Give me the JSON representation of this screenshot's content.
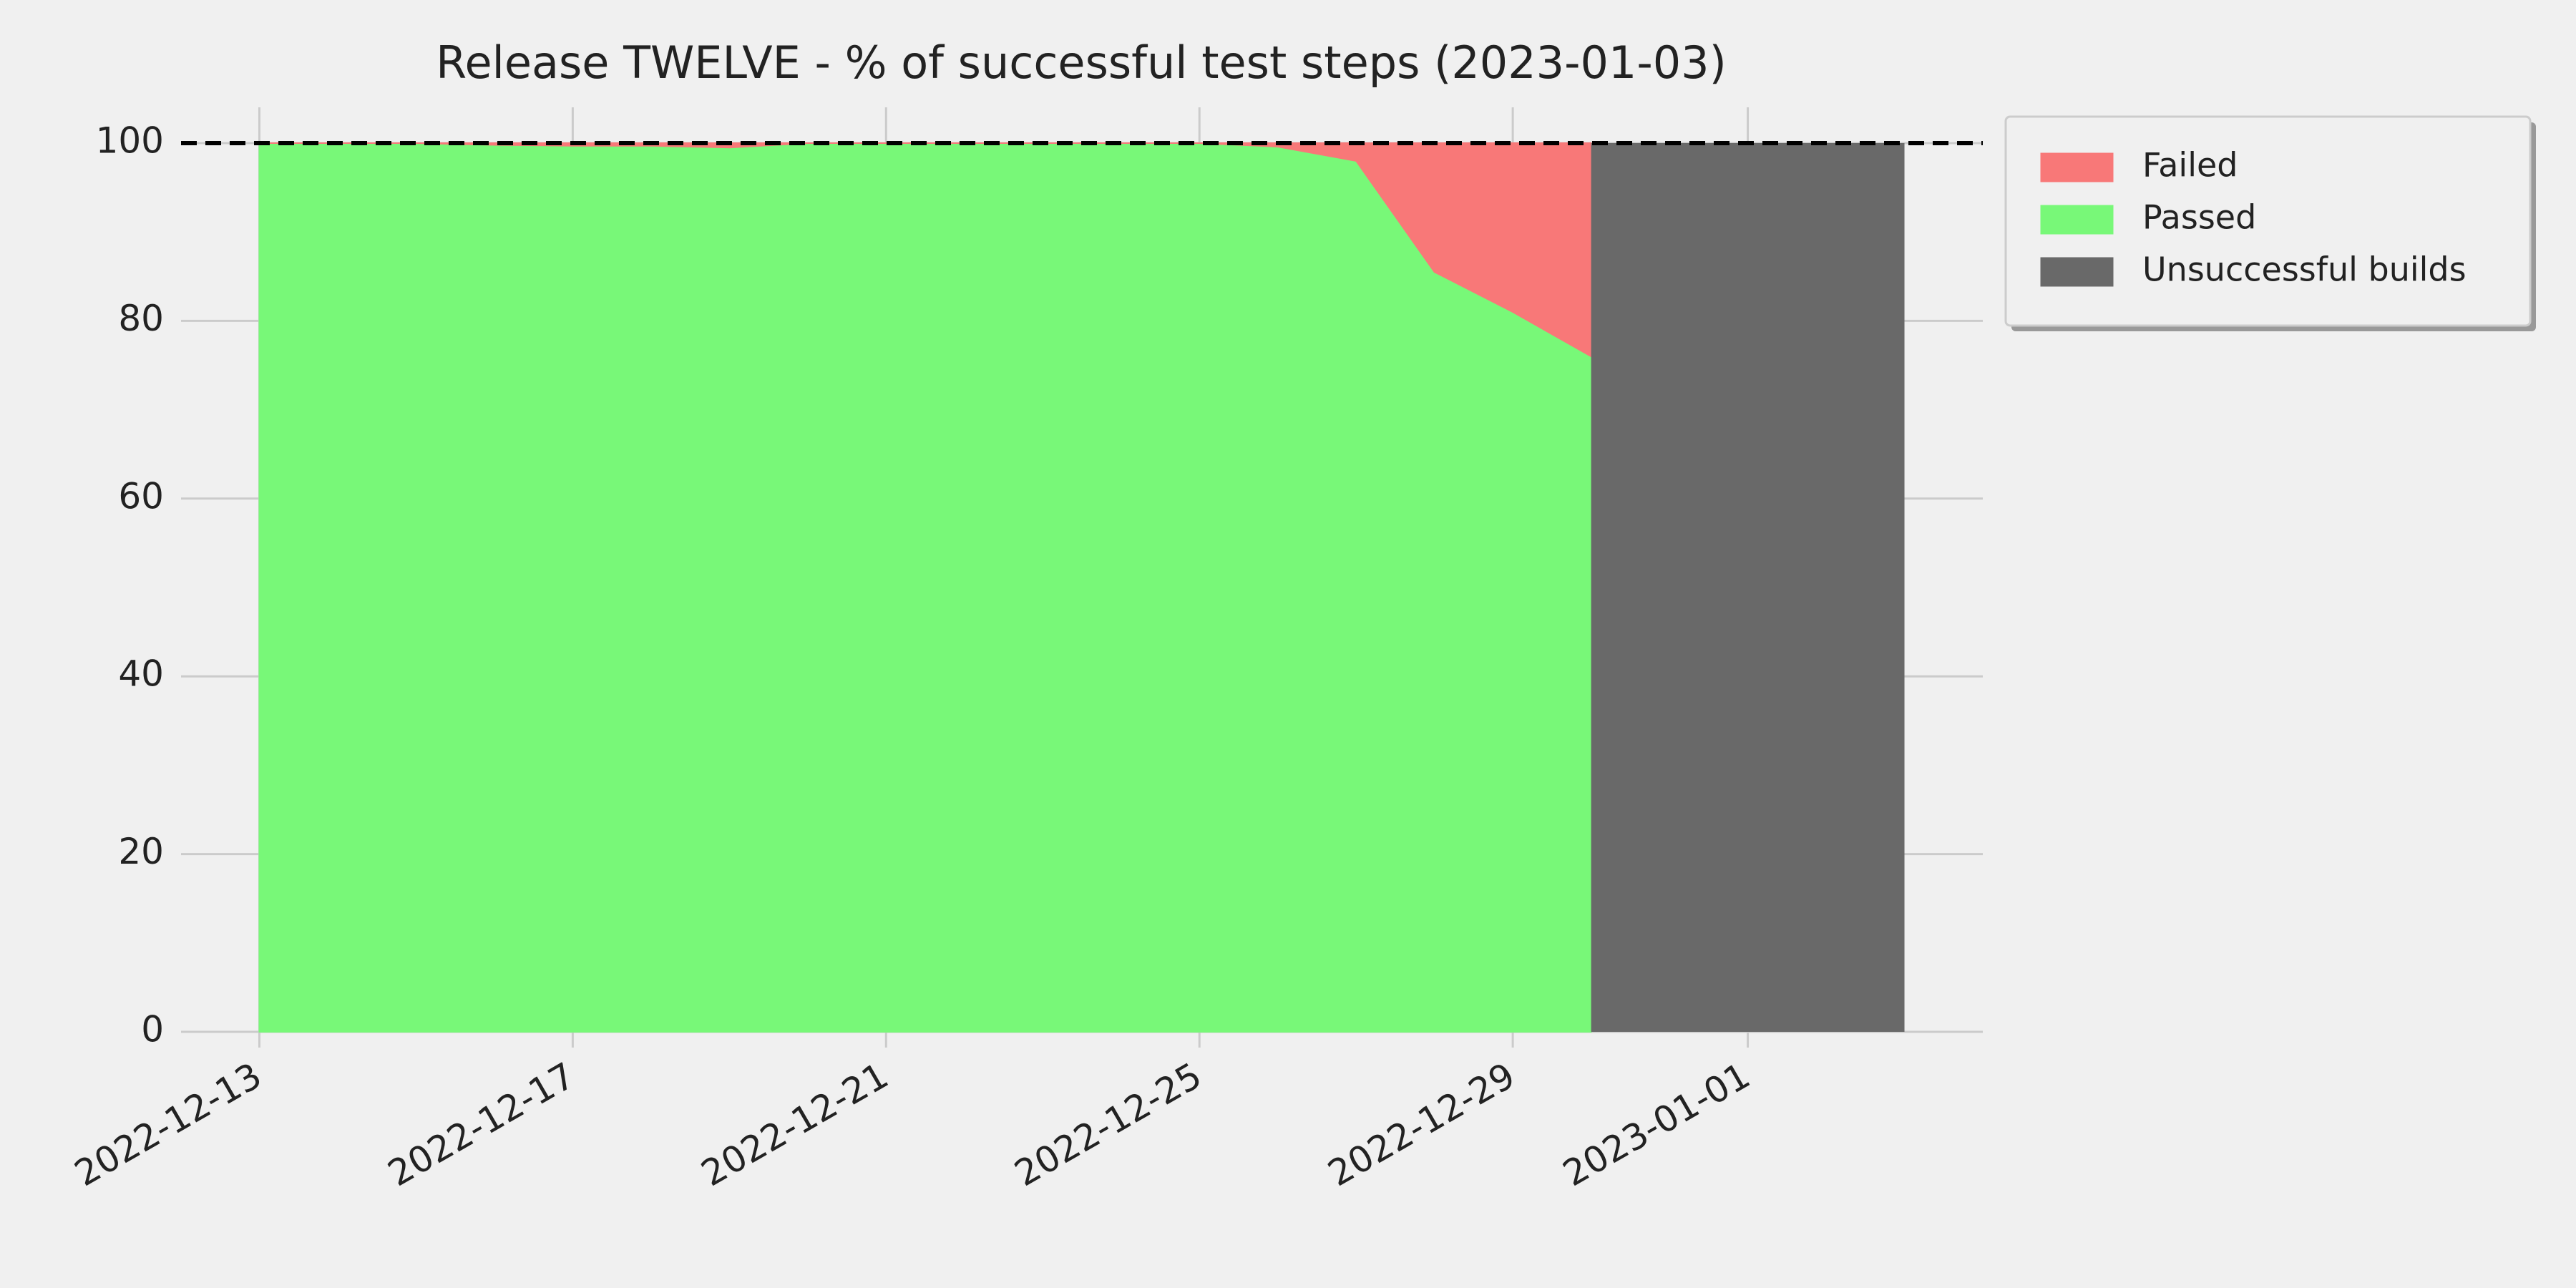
{
  "chart_data": {
    "type": "stacked-area",
    "title": "Release TWELVE - % of successful test steps (2023-01-03)",
    "x": [
      "2022-12-13",
      "2022-12-14",
      "2022-12-15",
      "2022-12-16",
      "2022-12-17",
      "2022-12-18",
      "2022-12-19",
      "2022-12-20",
      "2022-12-21",
      "2022-12-22",
      "2022-12-23",
      "2022-12-24",
      "2022-12-25",
      "2022-12-26",
      "2022-12-27",
      "2022-12-28",
      "2022-12-29",
      "2022-12-30"
    ],
    "series": [
      {
        "name": "Passed",
        "color": "#78f878",
        "values": [
          100,
          100,
          100,
          99.8,
          99.7,
          99.7,
          99.5,
          100,
          100,
          100,
          100,
          100,
          100,
          99.6,
          98,
          85.5,
          81,
          76
        ]
      },
      {
        "name": "Failed",
        "color": "#f87878",
        "values": [
          0,
          0,
          0,
          0.2,
          0.3,
          0.3,
          0.5,
          0,
          0,
          0,
          0,
          0,
          0,
          0.4,
          2,
          14.5,
          19,
          24
        ]
      }
    ],
    "unsuccessful_builds": {
      "name": "Unsuccessful builds",
      "color": "#696969",
      "x": [
        "2022-12-30",
        "2023-01-03"
      ],
      "value": 100
    },
    "reference_line": 100,
    "legend_order": [
      "Failed",
      "Passed",
      "Unsuccessful builds"
    ],
    "xlim": [
      "2022-12-12",
      "2023-01-04"
    ],
    "xticks": [
      "2022-12-13",
      "2022-12-17",
      "2022-12-21",
      "2022-12-25",
      "2022-12-29",
      "2023-01-01"
    ],
    "ylim": [
      0,
      100
    ],
    "yticks": [
      0,
      20,
      40,
      60,
      80,
      100
    ],
    "grid": true,
    "legend": "outside-upper-right"
  }
}
